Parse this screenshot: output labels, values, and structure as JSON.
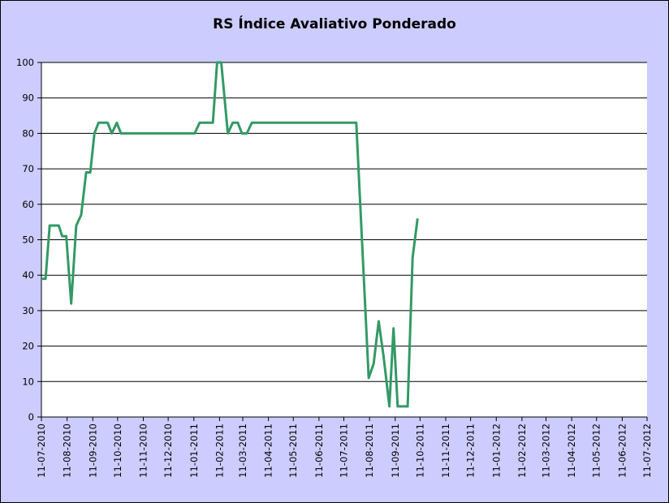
{
  "chart_data": {
    "type": "line",
    "title": "RS Índice Avaliativo Ponderado",
    "xlabel": "",
    "ylabel": "",
    "ylim": [
      0,
      100
    ],
    "yticks": [
      0,
      10,
      20,
      30,
      40,
      50,
      60,
      70,
      80,
      90,
      100
    ],
    "xlim": [
      "2010-07-11",
      "2012-07-11"
    ],
    "xticks": [
      "11-07-2010",
      "11-08-2010",
      "11-09-2010",
      "11-10-2010",
      "11-11-2010",
      "11-12-2010",
      "11-01-2011",
      "11-02-2011",
      "11-03-2011",
      "11-04-2011",
      "11-05-2011",
      "11-06-2011",
      "11-07-2011",
      "11-08-2011",
      "11-09-2011",
      "11-10-2011",
      "11-11-2011",
      "11-12-2011",
      "11-01-2012",
      "11-02-2012",
      "11-03-2012",
      "11-04-2012",
      "11-05-2012",
      "11-06-2012",
      "11-07-2012"
    ],
    "grid": true,
    "legend": "none",
    "colors": {
      "line": "#339966",
      "plot_bg": "#ffffff",
      "frame_bg": "#ccccff",
      "grid": "#000000"
    },
    "series": [
      {
        "points": [
          [
            "2010-07-11",
            39
          ],
          [
            "2010-07-16",
            39
          ],
          [
            "2010-07-21",
            54
          ],
          [
            "2010-07-26",
            54
          ],
          [
            "2010-08-01",
            54
          ],
          [
            "2010-08-05",
            51
          ],
          [
            "2010-08-10",
            51
          ],
          [
            "2010-08-16",
            32
          ],
          [
            "2010-08-22",
            54
          ],
          [
            "2010-08-28",
            57
          ],
          [
            "2010-09-03",
            69
          ],
          [
            "2010-09-08",
            69
          ],
          [
            "2010-09-13",
            80
          ],
          [
            "2010-09-18",
            83
          ],
          [
            "2010-09-23",
            83
          ],
          [
            "2010-09-29",
            83
          ],
          [
            "2010-10-04",
            80
          ],
          [
            "2010-10-10",
            83
          ],
          [
            "2010-10-15",
            80
          ],
          [
            "2010-10-21",
            80
          ],
          [
            "2010-11-15",
            80
          ],
          [
            "2010-12-10",
            80
          ],
          [
            "2011-01-12",
            80
          ],
          [
            "2011-01-18",
            83
          ],
          [
            "2011-01-25",
            83
          ],
          [
            "2011-02-03",
            83
          ],
          [
            "2011-02-08",
            100
          ],
          [
            "2011-02-13",
            100
          ],
          [
            "2011-02-21",
            80
          ],
          [
            "2011-02-27",
            83
          ],
          [
            "2011-03-05",
            83
          ],
          [
            "2011-03-10",
            80
          ],
          [
            "2011-03-16",
            80
          ],
          [
            "2011-03-22",
            83
          ],
          [
            "2011-04-05",
            83
          ],
          [
            "2011-05-01",
            83
          ],
          [
            "2011-06-01",
            83
          ],
          [
            "2011-07-01",
            83
          ],
          [
            "2011-07-26",
            83
          ],
          [
            "2011-08-10",
            11
          ],
          [
            "2011-08-16",
            15
          ],
          [
            "2011-08-22",
            27
          ],
          [
            "2011-08-28",
            17
          ],
          [
            "2011-09-04",
            3
          ],
          [
            "2011-09-09",
            25
          ],
          [
            "2011-09-14",
            3
          ],
          [
            "2011-09-20",
            3
          ],
          [
            "2011-09-26",
            3
          ],
          [
            "2011-10-02",
            45
          ],
          [
            "2011-10-08",
            56
          ]
        ]
      }
    ]
  }
}
